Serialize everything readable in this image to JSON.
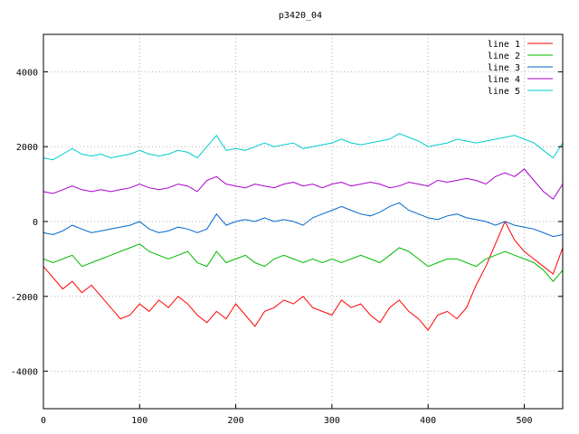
{
  "chart_data": {
    "type": "line",
    "title": "p3420_04",
    "xlabel": "",
    "ylabel": "",
    "xlim": [
      0,
      540
    ],
    "ylim": [
      -5000,
      5000
    ],
    "x_ticks": [
      0,
      100,
      200,
      300,
      400,
      500
    ],
    "y_ticks": [
      -4000,
      -2000,
      0,
      2000,
      4000
    ],
    "grid": true,
    "legend_position": "top-right",
    "series": [
      {
        "name": "line 1",
        "color": "#ff0000",
        "x": [
          0,
          10,
          20,
          30,
          40,
          50,
          60,
          70,
          80,
          90,
          100,
          110,
          120,
          130,
          140,
          150,
          160,
          170,
          180,
          190,
          200,
          210,
          220,
          230,
          240,
          250,
          260,
          270,
          280,
          290,
          300,
          310,
          320,
          330,
          340,
          350,
          360,
          370,
          380,
          390,
          400,
          410,
          420,
          430,
          440,
          450,
          460,
          470,
          480,
          490,
          500,
          510,
          520,
          530,
          540
        ],
        "values": [
          -1200,
          -1500,
          -1800,
          -1600,
          -1900,
          -1700,
          -2000,
          -2300,
          -2600,
          -2500,
          -2200,
          -2400,
          -2100,
          -2300,
          -2000,
          -2200,
          -2500,
          -2700,
          -2400,
          -2600,
          -2200,
          -2500,
          -2800,
          -2400,
          -2300,
          -2100,
          -2200,
          -2000,
          -2300,
          -2400,
          -2500,
          -2100,
          -2300,
          -2200,
          -2500,
          -2700,
          -2300,
          -2100,
          -2400,
          -2600,
          -2900,
          -2500,
          -2400,
          -2600,
          -2300,
          -1700,
          -1200,
          -600,
          0,
          -500,
          -800,
          -1000,
          -1200,
          -1400,
          -700
        ]
      },
      {
        "name": "line 2",
        "color": "#00bb00",
        "x": [
          0,
          10,
          20,
          30,
          40,
          50,
          60,
          70,
          80,
          90,
          100,
          110,
          120,
          130,
          140,
          150,
          160,
          170,
          180,
          190,
          200,
          210,
          220,
          230,
          240,
          250,
          260,
          270,
          280,
          290,
          300,
          310,
          320,
          330,
          340,
          350,
          360,
          370,
          380,
          390,
          400,
          410,
          420,
          430,
          440,
          450,
          460,
          470,
          480,
          490,
          500,
          510,
          520,
          530,
          540
        ],
        "values": [
          -1000,
          -1100,
          -1000,
          -900,
          -1200,
          -1100,
          -1000,
          -900,
          -800,
          -700,
          -600,
          -800,
          -900,
          -1000,
          -900,
          -800,
          -1100,
          -1200,
          -800,
          -1100,
          -1000,
          -900,
          -1100,
          -1200,
          -1000,
          -900,
          -1000,
          -1100,
          -1000,
          -1100,
          -1000,
          -1100,
          -1000,
          -900,
          -1000,
          -1100,
          -900,
          -700,
          -800,
          -1000,
          -1200,
          -1100,
          -1000,
          -1000,
          -1100,
          -1200,
          -1000,
          -900,
          -800,
          -900,
          -1000,
          -1100,
          -1300,
          -1600,
          -1300
        ]
      },
      {
        "name": "line 3",
        "color": "#0066cc",
        "x": [
          0,
          10,
          20,
          30,
          40,
          50,
          60,
          70,
          80,
          90,
          100,
          110,
          120,
          130,
          140,
          150,
          160,
          170,
          180,
          190,
          200,
          210,
          220,
          230,
          240,
          250,
          260,
          270,
          280,
          290,
          300,
          310,
          320,
          330,
          340,
          350,
          360,
          370,
          380,
          390,
          400,
          410,
          420,
          430,
          440,
          450,
          460,
          470,
          480,
          490,
          500,
          510,
          520,
          530,
          540
        ],
        "values": [
          -300,
          -350,
          -250,
          -100,
          -200,
          -300,
          -250,
          -200,
          -150,
          -100,
          0,
          -200,
          -300,
          -250,
          -150,
          -200,
          -300,
          -200,
          200,
          -100,
          0,
          50,
          0,
          100,
          0,
          50,
          0,
          -100,
          100,
          200,
          300,
          400,
          300,
          200,
          150,
          250,
          400,
          500,
          300,
          200,
          100,
          50,
          150,
          200,
          100,
          50,
          0,
          -100,
          0,
          -100,
          -150,
          -200,
          -300,
          -400,
          -350
        ]
      },
      {
        "name": "line 4",
        "color": "#aa00cc",
        "x": [
          0,
          10,
          20,
          30,
          40,
          50,
          60,
          70,
          80,
          90,
          100,
          110,
          120,
          130,
          140,
          150,
          160,
          170,
          180,
          190,
          200,
          210,
          220,
          230,
          240,
          250,
          260,
          270,
          280,
          290,
          300,
          310,
          320,
          330,
          340,
          350,
          360,
          370,
          380,
          390,
          400,
          410,
          420,
          430,
          440,
          450,
          460,
          470,
          480,
          490,
          500,
          510,
          520,
          530,
          540
        ],
        "values": [
          800,
          750,
          850,
          950,
          850,
          800,
          850,
          800,
          850,
          900,
          1000,
          900,
          850,
          900,
          1000,
          950,
          800,
          1100,
          1200,
          1000,
          950,
          900,
          1000,
          950,
          900,
          1000,
          1050,
          950,
          1000,
          900,
          1000,
          1050,
          950,
          1000,
          1050,
          1000,
          900,
          950,
          1050,
          1000,
          950,
          1100,
          1050,
          1100,
          1150,
          1100,
          1000,
          1200,
          1300,
          1200,
          1400,
          1100,
          800,
          600,
          1000
        ]
      },
      {
        "name": "line 5",
        "color": "#00cccc",
        "x": [
          0,
          10,
          20,
          30,
          40,
          50,
          60,
          70,
          80,
          90,
          100,
          110,
          120,
          130,
          140,
          150,
          160,
          170,
          180,
          190,
          200,
          210,
          220,
          230,
          240,
          250,
          260,
          270,
          280,
          290,
          300,
          310,
          320,
          330,
          340,
          350,
          360,
          370,
          380,
          390,
          400,
          410,
          420,
          430,
          440,
          450,
          460,
          470,
          480,
          490,
          500,
          510,
          520,
          530,
          540
        ],
        "values": [
          1700,
          1650,
          1800,
          1950,
          1800,
          1750,
          1800,
          1700,
          1750,
          1800,
          1900,
          1800,
          1750,
          1800,
          1900,
          1850,
          1700,
          2000,
          2300,
          1900,
          1950,
          1900,
          2000,
          2100,
          2000,
          2050,
          2100,
          1950,
          2000,
          2050,
          2100,
          2200,
          2100,
          2050,
          2100,
          2150,
          2200,
          2350,
          2250,
          2150,
          2000,
          2050,
          2100,
          2200,
          2150,
          2100,
          2150,
          2200,
          2250,
          2300,
          2200,
          2100,
          1900,
          1700,
          2100
        ]
      }
    ]
  }
}
